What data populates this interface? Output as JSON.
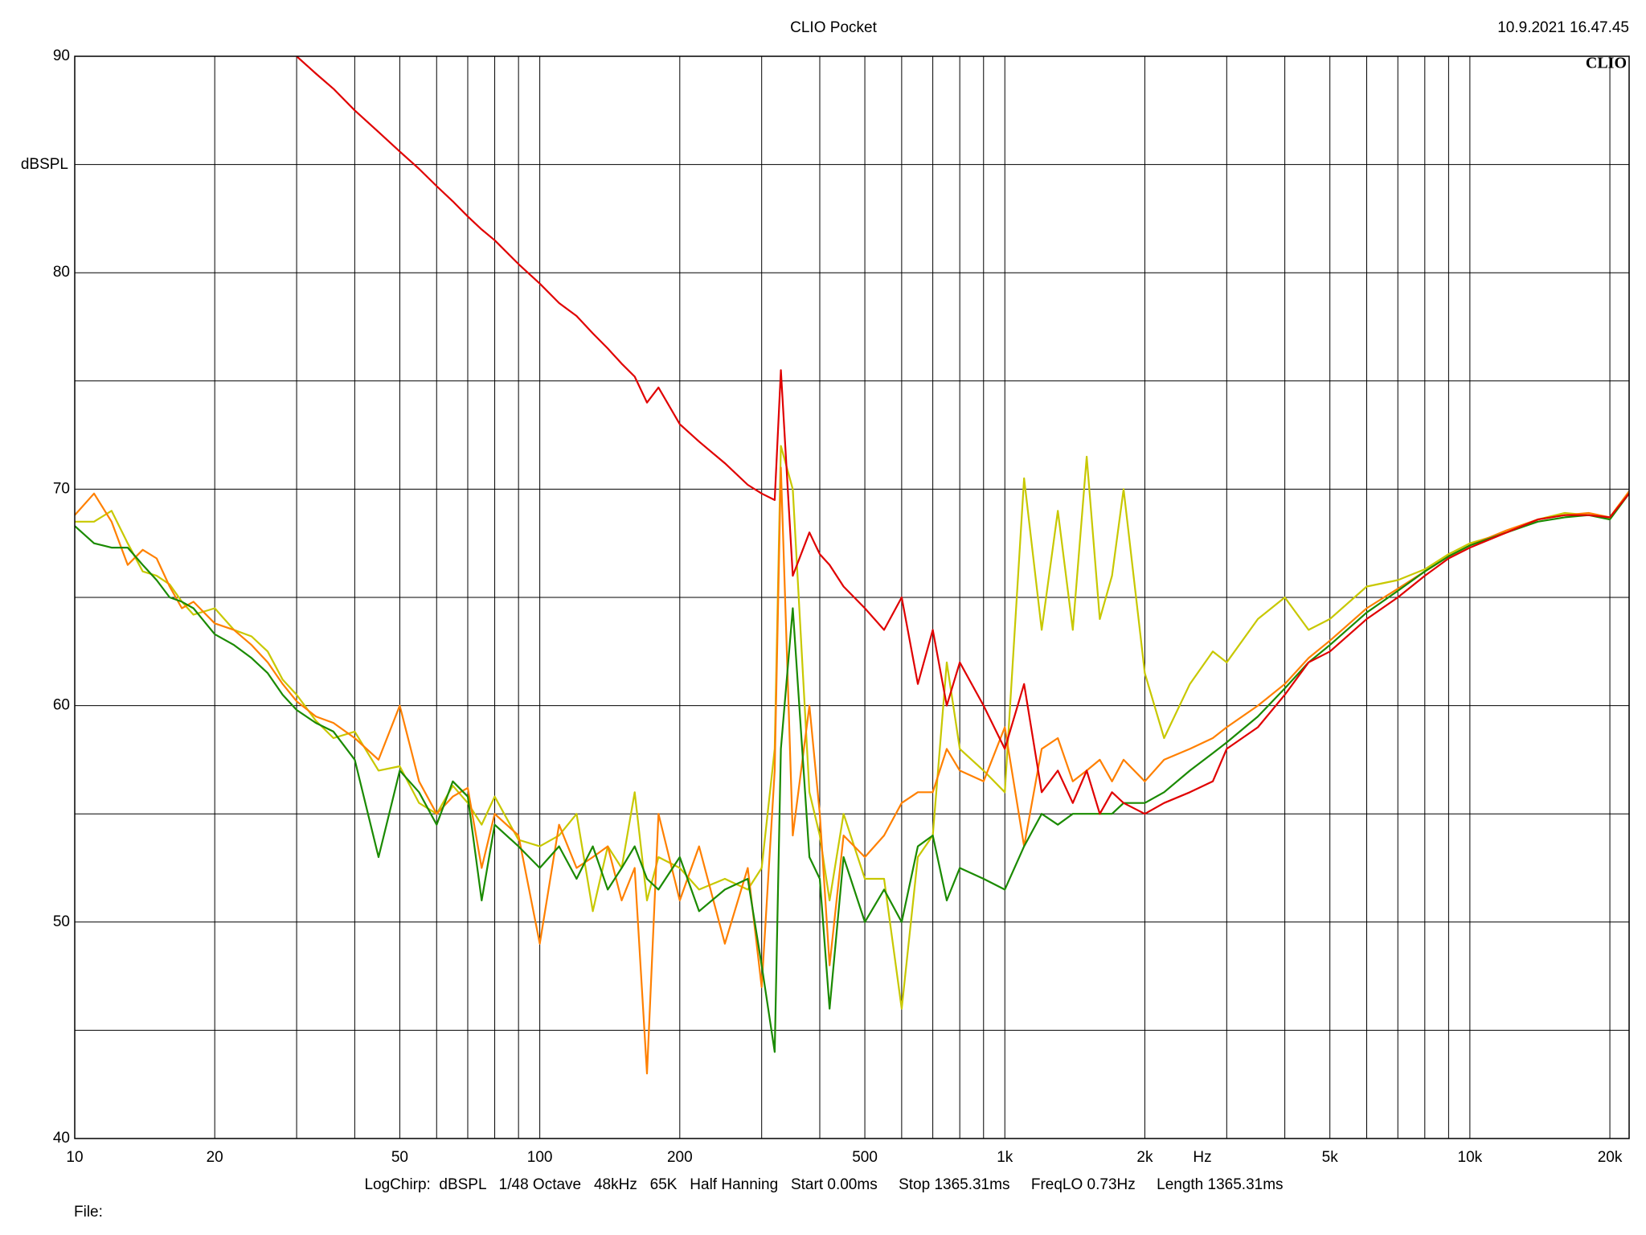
{
  "chart_data": {
    "type": "line",
    "title": "CLIO Pocket",
    "timestamp": "10.9.2021 16.47.45",
    "brand": "CLIO",
    "y_label": "dBSPL",
    "x_label": "Hz",
    "footer": "LogChirp:  dBSPL   1/48 Octave   48kHz   65K   Half Hanning   Start 0.00ms     Stop 1365.31ms     FreqLO 0.73Hz     Length 1365.31ms",
    "file_label": "File:",
    "x_scale": "log",
    "grid": true,
    "xlim": [
      10,
      22000
    ],
    "ylim": [
      40,
      90
    ],
    "xticks": [
      10,
      20,
      50,
      100,
      200,
      500,
      {
        "value": 1000,
        "label": "1k"
      },
      {
        "value": 2000,
        "label": "2k"
      },
      {
        "value": 5000,
        "label": "5k"
      },
      {
        "value": 10000,
        "label": "10k"
      },
      {
        "value": 20000,
        "label": "20k"
      }
    ],
    "x_minor_grid": [
      30,
      40,
      60,
      70,
      80,
      90,
      300,
      400,
      600,
      700,
      800,
      900,
      3000,
      4000,
      6000,
      7000,
      8000,
      9000
    ],
    "yticks": [
      40,
      50,
      60,
      70,
      80,
      90
    ],
    "y_minor_grid": [
      45,
      55,
      65,
      75,
      85
    ],
    "x": [
      10,
      11,
      12,
      13,
      14,
      15,
      16,
      17,
      18,
      20,
      22,
      24,
      26,
      28,
      30,
      33,
      36,
      40,
      45,
      50,
      55,
      60,
      65,
      70,
      75,
      80,
      90,
      100,
      110,
      120,
      130,
      140,
      150,
      160,
      170,
      180,
      200,
      220,
      250,
      280,
      300,
      320,
      330,
      350,
      380,
      400,
      420,
      450,
      500,
      550,
      600,
      650,
      700,
      750,
      800,
      900,
      1000,
      1100,
      1200,
      1300,
      1400,
      1500,
      1600,
      1700,
      1800,
      2000,
      2200,
      2500,
      2800,
      3000,
      3500,
      4000,
      4500,
      5000,
      6000,
      7000,
      8000,
      9000,
      10000,
      12000,
      14000,
      16000,
      18000,
      20000,
      22000
    ],
    "series": [
      {
        "color": "#c8c800",
        "values": [
          68.5,
          68.5,
          69,
          67.5,
          66.2,
          66,
          65.6,
          64.8,
          64.2,
          64.5,
          63.5,
          63.2,
          62.5,
          61.2,
          60.5,
          59.3,
          58.5,
          58.8,
          57,
          57.2,
          55.5,
          55,
          56.3,
          55.5,
          54.5,
          55.8,
          53.8,
          53.5,
          54,
          55,
          50.5,
          53.5,
          52.5,
          56,
          51,
          53,
          52.5,
          51.5,
          52,
          51.5,
          52.5,
          58,
          72,
          70,
          56,
          54,
          51,
          55,
          52,
          52,
          46,
          53,
          54,
          62,
          58,
          57,
          56,
          70.5,
          63.5,
          69,
          63.5,
          71.5,
          64,
          66,
          70,
          61.5,
          58.5,
          61,
          62.5,
          62,
          64,
          65,
          63.5,
          64,
          65.5,
          65.8,
          66.3,
          67,
          67.5,
          68,
          68.6,
          68.9,
          68.8,
          68.7,
          69.9
        ]
      },
      {
        "color": "#ff8000",
        "values": [
          68.8,
          69.8,
          68.5,
          66.5,
          67.2,
          66.8,
          65.5,
          64.5,
          64.8,
          63.8,
          63.5,
          62.8,
          62,
          61,
          60.2,
          59.5,
          59.2,
          58.5,
          57.5,
          60,
          56.5,
          55,
          55.8,
          56.2,
          52.5,
          55,
          54,
          49,
          54.5,
          52.5,
          53,
          53.5,
          51,
          52.5,
          43,
          55,
          51,
          53.5,
          49,
          52.5,
          47,
          57,
          71,
          54,
          60,
          55,
          48,
          54,
          53,
          54,
          55.5,
          56,
          56,
          58,
          57,
          56.5,
          59,
          53.5,
          58,
          58.5,
          56.5,
          57,
          57.5,
          56.5,
          57.5,
          56.5,
          57.5,
          58,
          58.5,
          59,
          60,
          61,
          62.2,
          63,
          64.5,
          65.4,
          66.2,
          66.9,
          67.4,
          68.1,
          68.6,
          68.8,
          68.9,
          68.7,
          69.9
        ]
      },
      {
        "color": "#1a8a00",
        "values": [
          68.3,
          67.5,
          67.3,
          67.3,
          66.5,
          65.8,
          65,
          64.8,
          64.5,
          63.3,
          62.8,
          62.2,
          61.5,
          60.5,
          59.8,
          59.2,
          58.8,
          57.5,
          53,
          57,
          56,
          54.5,
          56.5,
          55.8,
          51,
          54.5,
          53.5,
          52.5,
          53.5,
          52,
          53.5,
          51.5,
          52.5,
          53.5,
          52,
          51.5,
          53,
          50.5,
          51.5,
          52,
          48,
          44,
          58,
          64.5,
          53,
          52,
          46,
          53,
          50,
          51.5,
          50,
          53.5,
          54,
          51,
          52.5,
          52,
          51.5,
          53.5,
          55,
          54.5,
          55,
          55,
          55,
          55,
          55.5,
          55.5,
          56,
          57,
          57.8,
          58.3,
          59.5,
          60.8,
          62,
          62.8,
          64.3,
          65.3,
          66.2,
          66.9,
          67.4,
          68,
          68.5,
          68.7,
          68.8,
          68.6,
          69.8
        ]
      },
      {
        "color": "#e00000",
        "values": [
          null,
          null,
          null,
          null,
          null,
          null,
          null,
          null,
          null,
          null,
          null,
          null,
          null,
          null,
          90,
          89.2,
          88.5,
          87.5,
          86.5,
          85.6,
          84.8,
          84,
          83.3,
          82.6,
          82,
          81.5,
          80.4,
          79.5,
          78.6,
          78,
          77.2,
          76.5,
          75.8,
          75.2,
          74,
          74.7,
          73,
          72.2,
          71.2,
          70.2,
          69.8,
          69.5,
          75.5,
          66,
          68,
          67,
          66.5,
          65.5,
          64.5,
          63.5,
          65,
          61,
          63.5,
          60,
          62,
          60,
          58,
          61,
          56,
          57,
          55.5,
          57,
          55,
          56,
          55.5,
          55,
          55.5,
          56,
          56.5,
          58,
          59,
          60.5,
          62,
          62.5,
          64,
          65,
          66,
          66.8,
          67.3,
          68,
          68.6,
          68.8,
          68.8,
          68.7,
          69.8
        ]
      }
    ]
  }
}
